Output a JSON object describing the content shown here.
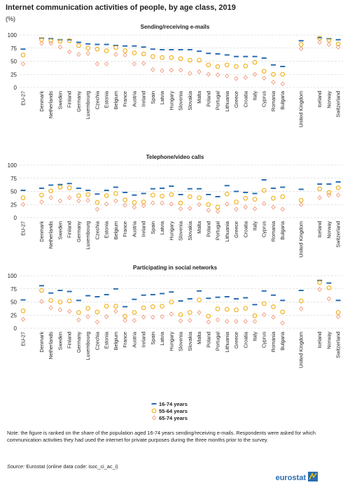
{
  "title": "Internet communication activities of people, by age class, 2019",
  "y_unit": "(%)",
  "note": "Note: the figure is ranked on the share of the population aged 16-74 years sending/receiving e-mails. Respondents were asked for which communication activities they had used the internet for private purposes during the three months prior to the survey.",
  "source_label": "Source:",
  "source_text": "Eurostat (online data code: isoc_ci_ac_i)",
  "logo": "eurostat",
  "chart_data": [
    {
      "type": "dot",
      "title": "Sending/receiving e-mails",
      "categories": [
        "EU-27",
        null,
        "Denmark",
        "Netherlands",
        "Sweden",
        "Finland",
        "Germany",
        "Luxembourg",
        "Czechia",
        "Estonia",
        "Belgium",
        "France",
        "Austria",
        "Ireland",
        "Spain",
        "Latvia",
        "Hungary",
        "Slovenia",
        "Slovakia",
        "Malta",
        "Poland",
        "Portugal",
        "Lithuania",
        "Greece",
        "Croatia",
        "Italy",
        "Cyprus",
        "Romania",
        "Bulgaria",
        null,
        "United Kingdom",
        null,
        "Iceland",
        "Norway",
        "Switzerland"
      ],
      "ylim": [
        0,
        100
      ],
      "yticks": [
        0,
        25,
        50,
        75,
        100
      ],
      "grid": true,
      "series": [
        {
          "name": "16-74 years",
          "color": "#2a6db3",
          "marker": "dash",
          "values": [
            73,
            null,
            94,
            93,
            91,
            91,
            86,
            83,
            82,
            82,
            80,
            79,
            79,
            77,
            73,
            72,
            72,
            72,
            72,
            69,
            65,
            64,
            62,
            59,
            59,
            59,
            56,
            43,
            40,
            null,
            89,
            null,
            95,
            93,
            91
          ]
        },
        {
          "name": "55-64 years",
          "color": "#f0a800",
          "marker": "circle",
          "values": [
            62,
            null,
            91,
            89,
            88,
            89,
            80,
            75,
            73,
            70,
            76,
            70,
            66,
            64,
            59,
            57,
            57,
            55,
            52,
            52,
            43,
            40,
            43,
            40,
            41,
            48,
            31,
            25,
            25,
            null,
            82,
            null,
            94,
            90,
            83
          ]
        },
        {
          "name": "65-74 years",
          "color": "#f19a7e",
          "marker": "diamond",
          "values": [
            45,
            null,
            84,
            84,
            77,
            68,
            63,
            65,
            45,
            45,
            63,
            62,
            45,
            46,
            34,
            32,
            33,
            33,
            27,
            30,
            25,
            24,
            22,
            17,
            19,
            25,
            18,
            10,
            7,
            null,
            74,
            null,
            86,
            82,
            77
          ]
        }
      ]
    },
    {
      "type": "dot",
      "title": "Telephone/video calls",
      "categories": [
        "EU-27",
        null,
        "Denmark",
        "Netherlands",
        "Sweden",
        "Finland",
        "Germany",
        "Luxembourg",
        "Czechia",
        "Estonia",
        "Belgium",
        "France",
        "Austria",
        "Ireland",
        "Spain",
        "Latvia",
        "Hungary",
        "Slovenia",
        "Slovakia",
        "Malta",
        "Poland",
        "Portugal",
        "Lithuania",
        "Greece",
        "Croatia",
        "Italy",
        "Cyprus",
        "Romania",
        "Bulgaria",
        null,
        "United Kingdom",
        null,
        "Iceland",
        "Norway",
        "Switzerland"
      ],
      "ylim": [
        0,
        100
      ],
      "yticks": [
        0,
        25,
        50,
        75,
        100
      ],
      "grid": true,
      "series": [
        {
          "color": "#2a6db3",
          "marker": "dash",
          "values": [
            52,
            null,
            56,
            62,
            63,
            65,
            56,
            52,
            45,
            52,
            58,
            48,
            43,
            46,
            55,
            56,
            60,
            44,
            55,
            55,
            44,
            40,
            61,
            50,
            48,
            46,
            72,
            56,
            58,
            null,
            54,
            null,
            64,
            64,
            68
          ]
        },
        {
          "color": "#f0a800",
          "marker": "circle",
          "values": [
            38,
            null,
            43,
            51,
            58,
            57,
            42,
            44,
            29,
            42,
            46,
            34,
            29,
            30,
            43,
            41,
            44,
            28,
            40,
            38,
            25,
            20,
            45,
            30,
            37,
            35,
            52,
            37,
            40,
            null,
            33,
            null,
            55,
            48,
            57
          ]
        },
        {
          "color": "#f19a7e",
          "marker": "diamond",
          "values": [
            25,
            null,
            30,
            38,
            32,
            38,
            32,
            33,
            16,
            26,
            32,
            24,
            20,
            23,
            28,
            28,
            26,
            17,
            18,
            25,
            14,
            12,
            26,
            16,
            20,
            17,
            27,
            20,
            16,
            null,
            25,
            null,
            38,
            43,
            43
          ]
        }
      ]
    },
    {
      "type": "dot",
      "title": "Participating in social networks",
      "categories": [
        "EU-27",
        null,
        "Denmark",
        "Netherlands",
        "Sweden",
        "Finland",
        "Germany",
        "Luxembourg",
        "Czechia",
        "Estonia",
        "Belgium",
        "France",
        "Austria",
        "Ireland",
        "Spain",
        "Latvia",
        "Hungary",
        "Slovenia",
        "Slovakia",
        "Malta",
        "Poland",
        "Portugal",
        "Lithuania",
        "Greece",
        "Croatia",
        "Italy",
        "Cyprus",
        "Romania",
        "Bulgaria",
        null,
        "United Kingdom",
        null,
        "Iceland",
        "Norway",
        "Switzerland"
      ],
      "ylim": [
        0,
        100
      ],
      "yticks": [
        0,
        25,
        50,
        75,
        100
      ],
      "grid": true,
      "series": [
        {
          "color": "#2a6db3",
          "marker": "dash",
          "values": [
            54,
            null,
            81,
            67,
            72,
            70,
            53,
            62,
            60,
            64,
            75,
            41,
            55,
            63,
            64,
            66,
            69,
            52,
            56,
            71,
            57,
            59,
            60,
            56,
            58,
            45,
            71,
            63,
            53,
            null,
            72,
            null,
            91,
            86,
            53
          ]
        },
        {
          "color": "#f0a800",
          "marker": "circle",
          "values": [
            33,
            null,
            72,
            53,
            50,
            52,
            30,
            38,
            31,
            42,
            42,
            23,
            30,
            39,
            41,
            42,
            50,
            26,
            30,
            54,
            23,
            37,
            36,
            35,
            38,
            24,
            47,
            41,
            31,
            null,
            52,
            null,
            87,
            77,
            30
          ]
        },
        {
          "color": "#f19a7e",
          "marker": "diamond",
          "values": [
            17,
            null,
            51,
            39,
            35,
            32,
            16,
            22,
            12,
            22,
            32,
            15,
            15,
            21,
            21,
            22,
            27,
            14,
            15,
            30,
            12,
            16,
            13,
            13,
            13,
            13,
            26,
            21,
            10,
            null,
            37,
            null,
            74,
            56,
            22
          ]
        }
      ]
    }
  ]
}
